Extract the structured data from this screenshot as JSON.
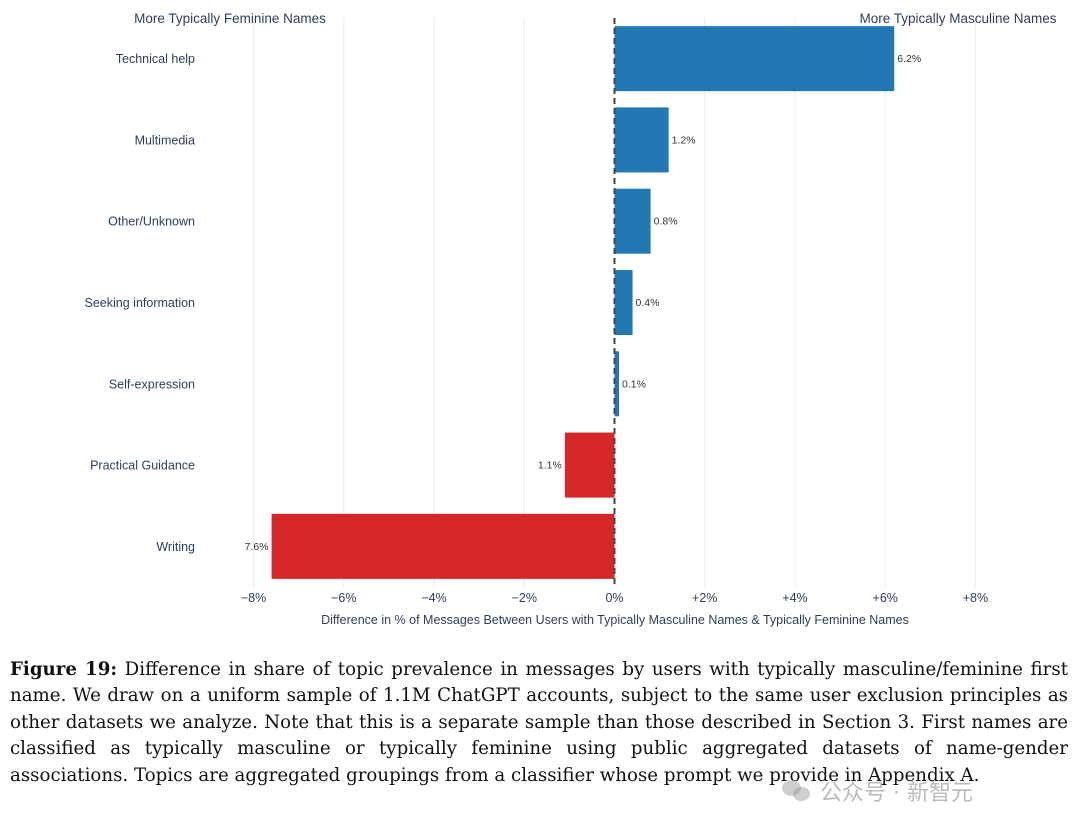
{
  "chart_data": {
    "type": "bar",
    "orientation": "horizontal",
    "categories": [
      "Technical help",
      "Multimedia",
      "Other/Unknown",
      "Seeking information",
      "Self-expression",
      "Practical Guidance",
      "Writing"
    ],
    "values": [
      6.2,
      1.2,
      0.8,
      0.4,
      0.1,
      -1.1,
      -7.6
    ],
    "data_labels": [
      "6.2%",
      "1.2%",
      "0.8%",
      "0.4%",
      "0.1%",
      "1.1%",
      "7.6%"
    ],
    "xlabel": "Difference in % of Messages Between Users with Typically Masculine Names & Typically Feminine Names",
    "xlim": [
      -8.5,
      8.5
    ],
    "xticks": [
      -8,
      -6,
      -4,
      -2,
      0,
      2,
      4,
      6,
      8
    ],
    "xtick_labels": [
      "−8%",
      "−6%",
      "−4%",
      "−2%",
      "0%",
      "+2%",
      "+4%",
      "+6%",
      "+8%"
    ],
    "left_annotation": "More Typically Feminine Names",
    "right_annotation": "More Typically Masculine Names",
    "colors": {
      "positive": "#2278b5",
      "negative": "#d62728",
      "axis_text": "#2a3f5f",
      "grid": "#ebebeb",
      "zero_line": "#444444"
    },
    "grid": true,
    "zero_line": "dashed"
  },
  "caption": {
    "label": "Figure 19:",
    "text": " Difference in share of topic prevalence in messages by users with typically masculine/feminine first name. We draw on a uniform sample of 1.1M ChatGPT accounts, subject to the same user exclusion principles as other datasets we analyze. Note that this is a separate sample than those described in Section 3. First names are classified as typically masculine or typically feminine using public aggregated datasets of name-gender associations. Topics are aggregated groupings from a classifier whose prompt we provide in Appendix A."
  },
  "watermark": {
    "text": "公众号 · 新智元"
  }
}
